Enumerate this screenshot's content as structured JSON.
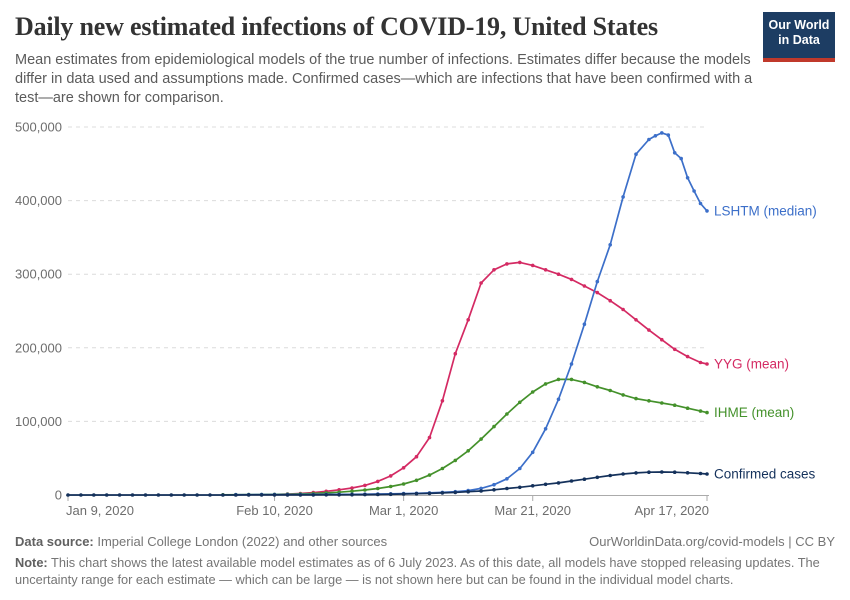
{
  "header": {
    "title": "Daily new estimated infections of COVID-19, United States",
    "subtitle": "Mean estimates from epidemiological models of the true number of infections. Estimates differ because the models differ in data used and assumptions made. Confirmed cases—which are infections that have been confirmed with a test—are shown for comparison.",
    "logo": {
      "line1": "Our World",
      "line2": "in Data",
      "bg_color": "#1D3D63",
      "accent_color": "#C0392B"
    }
  },
  "chart_data": {
    "type": "line",
    "title": "Daily new estimated infections of COVID-19, United States",
    "xlabel": "",
    "ylabel": "",
    "grid": "dashed-horizontal",
    "legend_position": "end-of-line labels",
    "x_axis": {
      "start_day": 0,
      "end_day": 99,
      "ticks": [
        {
          "day": 0,
          "label": "Jan 9, 2020"
        },
        {
          "day": 32,
          "label": "Feb 10, 2020"
        },
        {
          "day": 52,
          "label": "Mar 1, 2020"
        },
        {
          "day": 72,
          "label": "Mar 21, 2020"
        },
        {
          "day": 99,
          "label": "Apr 17, 2020"
        }
      ]
    },
    "y_axis": {
      "min": 0,
      "max": 500000,
      "ticks": [
        {
          "value": 0,
          "label": "0"
        },
        {
          "value": 100000,
          "label": "100,000"
        },
        {
          "value": 200000,
          "label": "200,000"
        },
        {
          "value": 300000,
          "label": "300,000"
        },
        {
          "value": 400000,
          "label": "400,000"
        },
        {
          "value": 500000,
          "label": "500,000"
        }
      ]
    },
    "series": [
      {
        "name": "YYG (mean)",
        "color": "#D42A63",
        "points": [
          [
            32,
            700
          ],
          [
            34,
            1200
          ],
          [
            36,
            2000
          ],
          [
            38,
            3200
          ],
          [
            40,
            5000
          ],
          [
            42,
            7000
          ],
          [
            44,
            9500
          ],
          [
            46,
            13000
          ],
          [
            48,
            18500
          ],
          [
            50,
            26000
          ],
          [
            52,
            37000
          ],
          [
            54,
            52000
          ],
          [
            56,
            78000
          ],
          [
            58,
            128000
          ],
          [
            60,
            192000
          ],
          [
            62,
            238000
          ],
          [
            64,
            288000
          ],
          [
            66,
            306000
          ],
          [
            68,
            314000
          ],
          [
            70,
            316000
          ],
          [
            72,
            312000
          ],
          [
            74,
            306000
          ],
          [
            76,
            300000
          ],
          [
            78,
            293000
          ],
          [
            80,
            284000
          ],
          [
            82,
            275000
          ],
          [
            84,
            264000
          ],
          [
            86,
            252000
          ],
          [
            88,
            238000
          ],
          [
            90,
            224000
          ],
          [
            92,
            211000
          ],
          [
            94,
            198000
          ],
          [
            96,
            188000
          ],
          [
            98,
            180000
          ],
          [
            99,
            178000
          ]
        ]
      },
      {
        "name": "IHME (mean)",
        "color": "#44912B",
        "points": [
          [
            24,
            300
          ],
          [
            26,
            400
          ],
          [
            28,
            500
          ],
          [
            30,
            650
          ],
          [
            32,
            850
          ],
          [
            34,
            1100
          ],
          [
            36,
            1500
          ],
          [
            38,
            2000
          ],
          [
            40,
            2800
          ],
          [
            42,
            3800
          ],
          [
            44,
            5200
          ],
          [
            46,
            6800
          ],
          [
            48,
            8800
          ],
          [
            50,
            11500
          ],
          [
            52,
            15000
          ],
          [
            54,
            20000
          ],
          [
            56,
            27000
          ],
          [
            58,
            36000
          ],
          [
            60,
            47000
          ],
          [
            62,
            60000
          ],
          [
            64,
            76000
          ],
          [
            66,
            93000
          ],
          [
            68,
            110000
          ],
          [
            70,
            126000
          ],
          [
            72,
            140000
          ],
          [
            74,
            151000
          ],
          [
            76,
            157000
          ],
          [
            78,
            157000
          ],
          [
            80,
            153000
          ],
          [
            82,
            147000
          ],
          [
            84,
            142000
          ],
          [
            86,
            136000
          ],
          [
            88,
            131000
          ],
          [
            90,
            128000
          ],
          [
            92,
            125000
          ],
          [
            94,
            122000
          ],
          [
            96,
            118000
          ],
          [
            98,
            114000
          ],
          [
            99,
            112000
          ]
        ]
      },
      {
        "name": "LSHTM (median)",
        "color": "#3C6FC9",
        "points": [
          [
            26,
            400
          ],
          [
            28,
            450
          ],
          [
            30,
            500
          ],
          [
            32,
            550
          ],
          [
            34,
            600
          ],
          [
            36,
            650
          ],
          [
            38,
            700
          ],
          [
            40,
            800
          ],
          [
            42,
            900
          ],
          [
            44,
            1000
          ],
          [
            46,
            1100
          ],
          [
            48,
            1300
          ],
          [
            50,
            1600
          ],
          [
            52,
            1900
          ],
          [
            54,
            2300
          ],
          [
            56,
            2800
          ],
          [
            58,
            3500
          ],
          [
            60,
            4500
          ],
          [
            62,
            6000
          ],
          [
            64,
            9000
          ],
          [
            66,
            14000
          ],
          [
            68,
            22000
          ],
          [
            70,
            36000
          ],
          [
            72,
            58000
          ],
          [
            74,
            90000
          ],
          [
            76,
            130000
          ],
          [
            78,
            178000
          ],
          [
            80,
            232000
          ],
          [
            82,
            290000
          ],
          [
            84,
            340000
          ],
          [
            86,
            405000
          ],
          [
            88,
            463000
          ],
          [
            90,
            483000
          ],
          [
            91,
            488000
          ],
          [
            92,
            492000
          ],
          [
            93,
            489000
          ],
          [
            94,
            465000
          ],
          [
            95,
            457000
          ],
          [
            96,
            431000
          ],
          [
            97,
            413000
          ],
          [
            98,
            396000
          ],
          [
            99,
            386000
          ]
        ]
      },
      {
        "name": "Confirmed cases",
        "color": "#14315B",
        "points": [
          [
            0,
            0
          ],
          [
            2,
            0
          ],
          [
            4,
            0
          ],
          [
            6,
            0
          ],
          [
            8,
            0
          ],
          [
            10,
            0
          ],
          [
            12,
            0
          ],
          [
            14,
            0
          ],
          [
            16,
            0
          ],
          [
            18,
            0
          ],
          [
            20,
            0
          ],
          [
            22,
            30
          ],
          [
            24,
            50
          ],
          [
            26,
            60
          ],
          [
            28,
            70
          ],
          [
            30,
            90
          ],
          [
            32,
            110
          ],
          [
            34,
            130
          ],
          [
            36,
            160
          ],
          [
            38,
            200
          ],
          [
            40,
            260
          ],
          [
            42,
            330
          ],
          [
            44,
            430
          ],
          [
            46,
            560
          ],
          [
            48,
            730
          ],
          [
            50,
            950
          ],
          [
            52,
            1300
          ],
          [
            54,
            1700
          ],
          [
            56,
            2200
          ],
          [
            58,
            2800
          ],
          [
            60,
            3500
          ],
          [
            62,
            4500
          ],
          [
            64,
            5500
          ],
          [
            66,
            7000
          ],
          [
            68,
            8800
          ],
          [
            70,
            10500
          ],
          [
            72,
            12500
          ],
          [
            74,
            14500
          ],
          [
            76,
            16500
          ],
          [
            78,
            19000
          ],
          [
            80,
            21500
          ],
          [
            82,
            24000
          ],
          [
            84,
            26500
          ],
          [
            86,
            28500
          ],
          [
            88,
            30000
          ],
          [
            90,
            31000
          ],
          [
            92,
            31300
          ],
          [
            94,
            31000
          ],
          [
            96,
            30200
          ],
          [
            98,
            29200
          ],
          [
            99,
            28600
          ]
        ]
      }
    ],
    "style": {
      "grid_color": "#dcdcdc",
      "axis_color": "#ababab",
      "tick_label_color": "#6d6d6d"
    }
  },
  "footer": {
    "datasource_label": "Data source:",
    "datasource_text": " Imperial College London (2022) and other sources",
    "attribution": "OurWorldinData.org/covid-models | CC BY",
    "note_label": "Note:",
    "note_text": " This chart shows the latest available model estimates as of 6 July 2023. As of this date, all models have stopped releasing updates. The uncertainty range for each estimate — which can be large — is not shown here but can be found in the individual model charts."
  }
}
